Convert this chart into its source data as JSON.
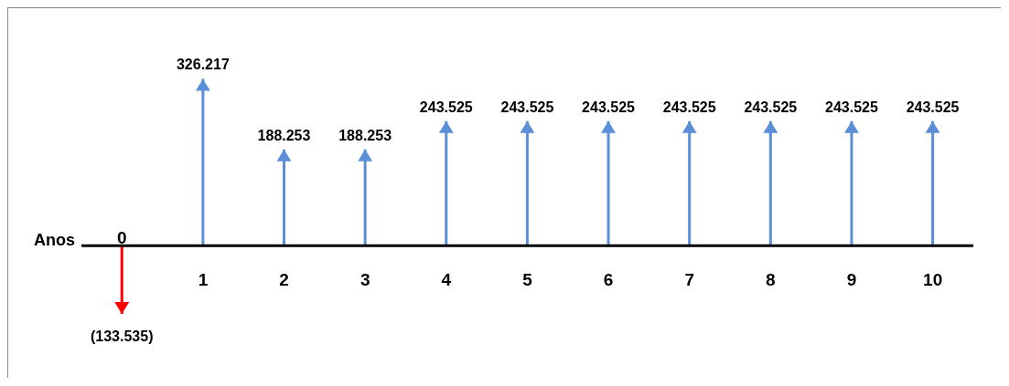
{
  "chart_data": {
    "type": "bar",
    "xlabel": "Anos",
    "categories": [
      "0",
      "1",
      "2",
      "3",
      "4",
      "5",
      "6",
      "7",
      "8",
      "9",
      "10"
    ],
    "values": [
      -133535,
      326217,
      188253,
      188253,
      243525,
      243525,
      243525,
      243525,
      243525,
      243525,
      243525
    ],
    "value_labels": [
      "(133.535)",
      "326.217",
      "188.253",
      "188.253",
      "243.525",
      "243.525",
      "243.525",
      "243.525",
      "243.525",
      "243.525",
      "243.525"
    ],
    "colors": [
      "#ff0000",
      "#5b8fd8",
      "#5b8fd8",
      "#5b8fd8",
      "#5b8fd8",
      "#5b8fd8",
      "#5b8fd8",
      "#5b8fd8",
      "#5b8fd8",
      "#5b8fd8",
      "#5b8fd8"
    ],
    "grid": false,
    "legend": false
  }
}
